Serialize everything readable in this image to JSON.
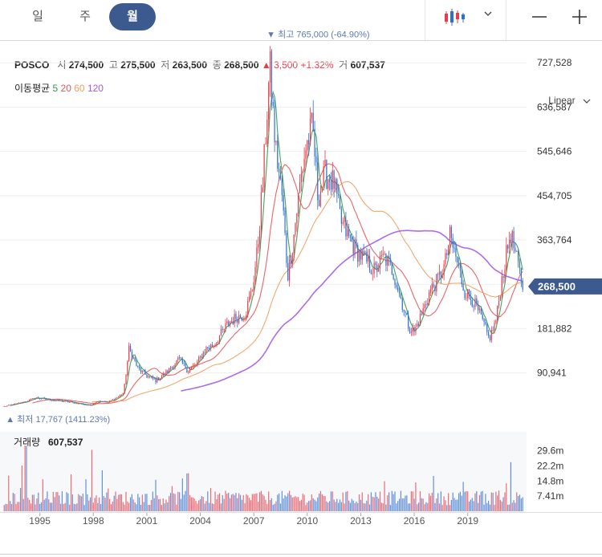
{
  "tabs": [
    {
      "label": "일",
      "active": false
    },
    {
      "label": "주",
      "active": false
    },
    {
      "label": "월",
      "active": true
    }
  ],
  "toolbar": {
    "icons": [
      "candlestick-icon",
      "chevron-down-icon",
      "zoom-out-icon",
      "zoom-in-icon"
    ]
  },
  "quote": {
    "name": "POSCO",
    "open_label": "시",
    "open": "274,500",
    "high_label": "고",
    "high": "275,500",
    "low_label": "저",
    "low": "263,500",
    "close_label": "종",
    "close": "268,500",
    "change_arrow": "▲",
    "change": "3,500",
    "change_pct": "+1.32%",
    "volume_label": "거",
    "volume": "607,537"
  },
  "ma_legend": {
    "label": "이동평균",
    "periods": [
      {
        "label": "5",
        "color": "#2f9a48"
      },
      {
        "label": "20",
        "color": "#e6555a"
      },
      {
        "label": "60",
        "color": "#f0a060"
      },
      {
        "label": "120",
        "color": "#a45ce8"
      }
    ]
  },
  "scale_mode": "Linear",
  "colors": {
    "up": "#e83c4a",
    "down": "#2f6fd1",
    "annotation": "#5f79ad",
    "current_price_badge": "#3d5a8f"
  },
  "chart_data": {
    "type": "candlestick",
    "title": "",
    "frequency": "monthly",
    "ylim": [
      0,
      800000
    ],
    "y_ticks": [
      90941,
      181882,
      272823,
      363764,
      454705,
      545646,
      636587,
      727528
    ],
    "y_tick_labels": [
      "90,941",
      "181,882",
      "",
      "363,764",
      "454,705",
      "545,646",
      "636,587",
      "727,528"
    ],
    "x_ticks": [
      "1995",
      "1998",
      "2001",
      "2004",
      "2007",
      "2010",
      "2013",
      "2016",
      "2019"
    ],
    "x_range": [
      1992.9,
      2022.3
    ],
    "current_price": {
      "value": 268500,
      "label": "268,500"
    },
    "annotations": {
      "high": {
        "prefix": "▼ 최고",
        "value": 765000,
        "value_label": "765,000",
        "pct": "(-64.90%)",
        "date": 2007.9
      },
      "low": {
        "prefix": "▲ 최저",
        "value": 17767,
        "value_label": "17,767",
        "pct": "(1411.23%)",
        "date": 1993.0
      }
    },
    "price_path": [
      [
        1993.0,
        22000
      ],
      [
        1994.0,
        30000
      ],
      [
        1994.8,
        40000
      ],
      [
        1995.5,
        36000
      ],
      [
        1996.5,
        32000
      ],
      [
        1997.2,
        28000
      ],
      [
        1997.8,
        24000
      ],
      [
        1998.3,
        34000
      ],
      [
        1998.8,
        30000
      ],
      [
        1999.3,
        40000
      ],
      [
        1999.7,
        50000
      ],
      [
        2000.0,
        140000
      ],
      [
        2000.5,
        100000
      ],
      [
        2001.0,
        85000
      ],
      [
        2001.5,
        75000
      ],
      [
        2002.2,
        95000
      ],
      [
        2002.8,
        120000
      ],
      [
        2003.3,
        95000
      ],
      [
        2003.8,
        110000
      ],
      [
        2004.3,
        140000
      ],
      [
        2004.8,
        150000
      ],
      [
        2005.5,
        190000
      ],
      [
        2006.0,
        205000
      ],
      [
        2006.5,
        210000
      ],
      [
        2006.9,
        260000
      ],
      [
        2007.2,
        340000
      ],
      [
        2007.5,
        480000
      ],
      [
        2007.7,
        600000
      ],
      [
        2007.9,
        720000
      ],
      [
        2008.2,
        560000
      ],
      [
        2008.6,
        450000
      ],
      [
        2008.9,
        290000
      ],
      [
        2009.2,
        360000
      ],
      [
        2009.6,
        480000
      ],
      [
        2009.9,
        550000
      ],
      [
        2010.3,
        600000
      ],
      [
        2010.6,
        450000
      ],
      [
        2011.0,
        500000
      ],
      [
        2011.5,
        480000
      ],
      [
        2011.9,
        400000
      ],
      [
        2012.3,
        370000
      ],
      [
        2012.8,
        340000
      ],
      [
        2013.3,
        320000
      ],
      [
        2013.8,
        300000
      ],
      [
        2014.3,
        330000
      ],
      [
        2014.8,
        300000
      ],
      [
        2015.2,
        250000
      ],
      [
        2015.7,
        185000
      ],
      [
        2016.0,
        175000
      ],
      [
        2016.5,
        220000
      ],
      [
        2016.9,
        260000
      ],
      [
        2017.3,
        280000
      ],
      [
        2017.7,
        310000
      ],
      [
        2018.0,
        370000
      ],
      [
        2018.4,
        320000
      ],
      [
        2018.8,
        260000
      ],
      [
        2019.3,
        240000
      ],
      [
        2019.8,
        200000
      ],
      [
        2020.2,
        160000
      ],
      [
        2020.6,
        200000
      ],
      [
        2020.9,
        280000
      ],
      [
        2021.2,
        340000
      ],
      [
        2021.4,
        380000
      ],
      [
        2021.7,
        330000
      ],
      [
        2022.1,
        268500
      ]
    ],
    "volume_panel": {
      "title": "거래량",
      "value": "607,537",
      "ylim": [
        0,
        37000000
      ],
      "y_ticks": [
        7410000,
        14800000,
        22200000,
        29600000
      ],
      "y_tick_labels": [
        "7.41m",
        "14.8m",
        "22.2m",
        "29.6m"
      ]
    }
  }
}
